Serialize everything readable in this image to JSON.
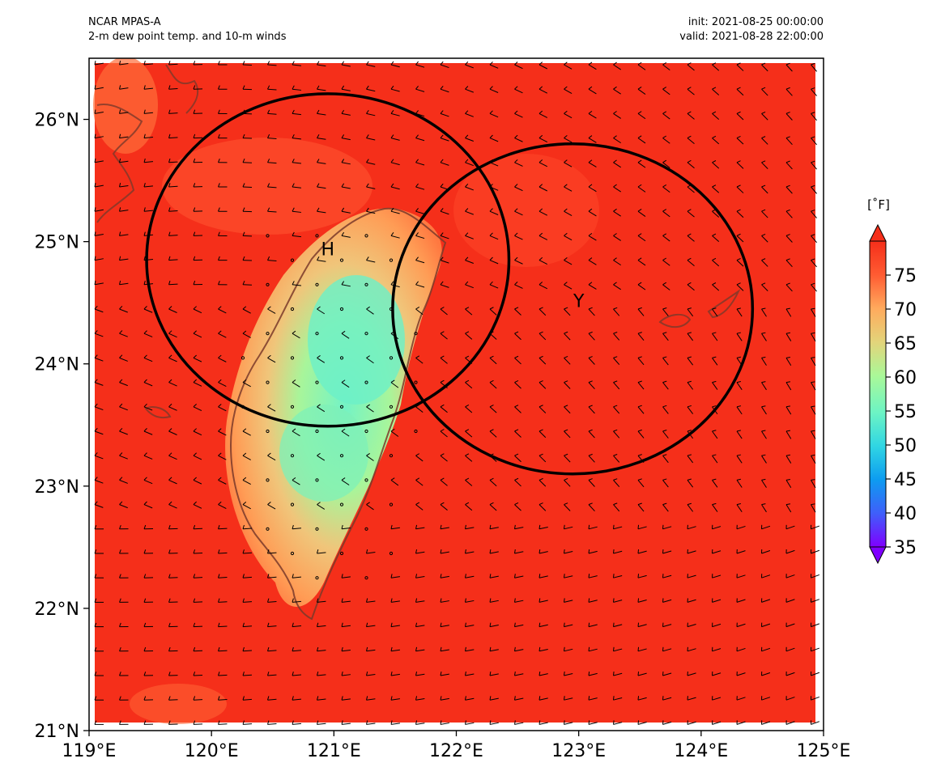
{
  "header": {
    "model": "NCAR MPAS-A",
    "field": "2-m dew point temp. and 10-m winds",
    "init": "init: 2021-08-25 00:00:00",
    "valid": "valid: 2021-08-28 22:00:00"
  },
  "map": {
    "lon_range": [
      119,
      125
    ],
    "lat_range": [
      21,
      26.5
    ],
    "lon_ticks": [
      119,
      120,
      121,
      122,
      123,
      124,
      125
    ],
    "lon_tick_labels": [
      "119°E",
      "120°E",
      "121°E",
      "122°E",
      "123°E",
      "124°E",
      "125°E"
    ],
    "lat_ticks": [
      21,
      22,
      23,
      24,
      25,
      26
    ],
    "lat_tick_labels": [
      "21°N",
      "22°N",
      "23°N",
      "24°N",
      "25°N",
      "26°N"
    ],
    "background_color": "#f52f1a",
    "coastline_color": "#7a3a2a",
    "circles": [
      {
        "label": "H",
        "center_lon": 120.95,
        "center_lat": 24.85,
        "radius_deg_lon": 1.48,
        "radius_deg_lat": 1.36
      },
      {
        "label": "Y",
        "center_lon": 122.95,
        "center_lat": 24.45,
        "radius_deg_lon": 1.47,
        "radius_deg_lat": 1.35
      }
    ]
  },
  "colorbar": {
    "unit": "[˚F]",
    "min": 35,
    "max": 80,
    "ticks": [
      35,
      40,
      45,
      50,
      55,
      60,
      65,
      70,
      75
    ],
    "tick_labels": [
      "35",
      "40",
      "45",
      "50",
      "55",
      "60",
      "65",
      "70",
      "75"
    ],
    "colors": [
      "#7f00ff",
      "#3f5ffa",
      "#0d9cf0",
      "#30d6e3",
      "#6df4c4",
      "#aaf898",
      "#e3d47a",
      "#ffaa5d",
      "#ff5b32",
      "#f52f1a"
    ]
  }
}
